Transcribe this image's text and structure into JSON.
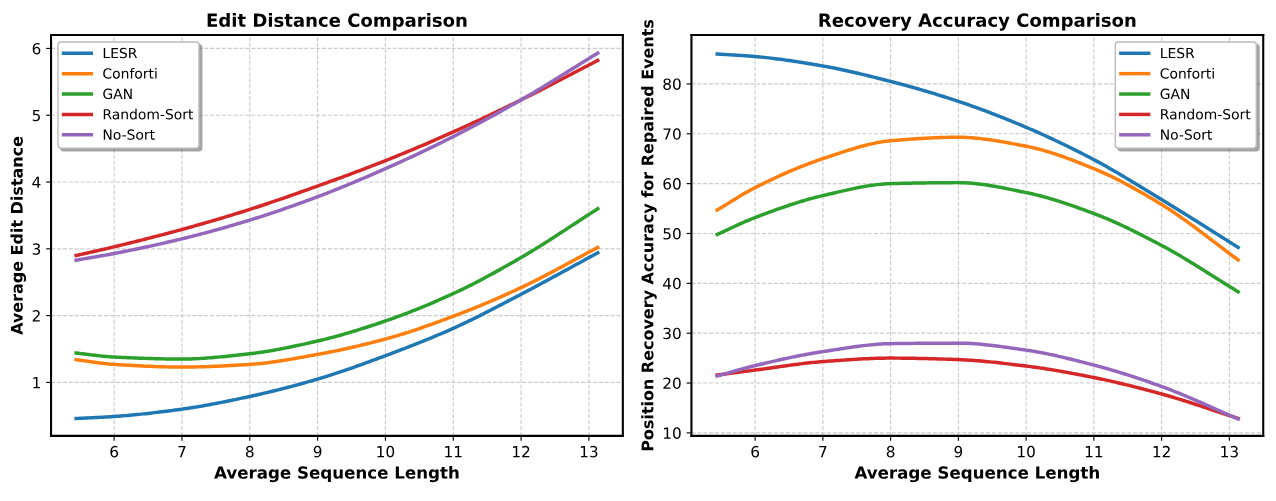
{
  "chart_data": [
    {
      "type": "line",
      "title": "Edit Distance Comparison",
      "xlabel": "Average Sequence Length",
      "ylabel": "Average Edit Distance",
      "x": [
        5.44,
        6,
        7,
        8,
        9,
        10,
        11,
        12,
        13.13
      ],
      "xlim": [
        5.07,
        13.5
      ],
      "xticks": [
        6,
        7,
        8,
        9,
        10,
        11,
        12,
        13
      ],
      "ylim": [
        0.2,
        6.2
      ],
      "yticks": [
        1,
        2,
        3,
        4,
        5,
        6
      ],
      "grid": true,
      "legend": "top left",
      "marker": "none",
      "line_style": "solid",
      "series": [
        {
          "name": "LESR",
          "color": "#1f77b4",
          "values": [
            0.46,
            0.49,
            0.6,
            0.79,
            1.05,
            1.4,
            1.81,
            2.32,
            2.94
          ]
        },
        {
          "name": "Conforti",
          "color": "#ff7f0e",
          "values": [
            1.34,
            1.27,
            1.23,
            1.27,
            1.42,
            1.65,
            1.99,
            2.42,
            3.02
          ]
        },
        {
          "name": "GAN",
          "color": "#2ca02c",
          "values": [
            1.44,
            1.38,
            1.35,
            1.43,
            1.62,
            1.92,
            2.33,
            2.87,
            3.6
          ]
        },
        {
          "name": "Random-Sort",
          "color": "#d62728",
          "values": [
            2.9,
            3.03,
            3.29,
            3.59,
            3.94,
            4.32,
            4.75,
            5.23,
            5.82
          ]
        },
        {
          "name": "No-Sort",
          "color": "#9467bd",
          "values": [
            2.83,
            2.93,
            3.15,
            3.43,
            3.78,
            4.2,
            4.68,
            5.23,
            5.93
          ]
        }
      ]
    },
    {
      "type": "line",
      "title": "Recovery Accuracy Comparison",
      "xlabel": "Average Sequence Length",
      "ylabel": "Position Recovery Accuracy for Repaired Events",
      "x": [
        5.44,
        6,
        7,
        8,
        9,
        10,
        11,
        12,
        13.13
      ],
      "xlim": [
        5.06,
        13.5
      ],
      "xticks": [
        6,
        7,
        8,
        9,
        10,
        11,
        12,
        13
      ],
      "ylim": [
        9.4,
        89.8
      ],
      "yticks": [
        10,
        20,
        30,
        40,
        50,
        60,
        70,
        80
      ],
      "grid": true,
      "legend": "top right",
      "marker": "none",
      "line_style": "solid",
      "series": [
        {
          "name": "LESR",
          "color": "#1f77b4",
          "values": [
            86.0,
            85.5,
            83.6,
            80.5,
            76.5,
            71.3,
            64.8,
            56.8,
            47.2
          ]
        },
        {
          "name": "Conforti",
          "color": "#ff7f0e",
          "values": [
            54.7,
            59.2,
            65.0,
            68.6,
            69.3,
            67.5,
            63.0,
            55.8,
            44.7
          ]
        },
        {
          "name": "GAN",
          "color": "#2ca02c",
          "values": [
            49.8,
            53.2,
            57.6,
            60.0,
            60.2,
            58.2,
            54.0,
            47.6,
            38.3
          ]
        },
        {
          "name": "Random-Sort",
          "color": "#d62728",
          "values": [
            21.6,
            22.6,
            24.3,
            25.0,
            24.7,
            23.4,
            21.1,
            17.8,
            12.9
          ]
        },
        {
          "name": "No-Sort",
          "color": "#9467bd",
          "values": [
            21.4,
            23.5,
            26.3,
            27.9,
            28.0,
            26.6,
            23.6,
            19.3,
            12.8
          ]
        }
      ]
    }
  ]
}
